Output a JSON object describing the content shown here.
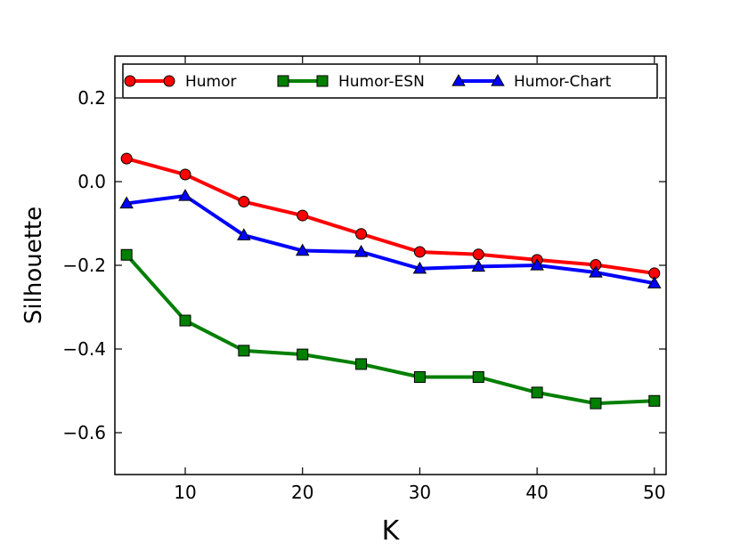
{
  "chart_data": {
    "type": "line",
    "xlabel": "K",
    "ylabel": "Silhouette",
    "xlim": [
      4,
      51
    ],
    "ylim": [
      -0.7,
      0.3
    ],
    "xticks": [
      10,
      20,
      30,
      40,
      50
    ],
    "yticks": [
      0.2,
      0.0,
      -0.2,
      -0.4,
      -0.6
    ],
    "ytick_labels": [
      "0.2",
      "0.0",
      "−0.2",
      "−0.4",
      "−0.6"
    ],
    "grid": false,
    "legend_position": "top",
    "x": [
      5,
      10,
      15,
      20,
      25,
      30,
      35,
      40,
      45,
      50
    ],
    "series": [
      {
        "name": "Humor",
        "color": "#ff0000",
        "marker": "circle",
        "values": [
          0.055,
          0.017,
          -0.048,
          -0.081,
          -0.125,
          -0.168,
          -0.174,
          -0.187,
          -0.199,
          -0.219
        ]
      },
      {
        "name": "Humor-ESN",
        "color": "#007f00",
        "marker": "square",
        "values": [
          -0.175,
          -0.332,
          -0.404,
          -0.413,
          -0.436,
          -0.467,
          -0.467,
          -0.504,
          -0.53,
          -0.524
        ]
      },
      {
        "name": "Humor-Chart",
        "color": "#0000ff",
        "marker": "triangle",
        "values": [
          -0.052,
          -0.034,
          -0.128,
          -0.165,
          -0.168,
          -0.208,
          -0.203,
          -0.2,
          -0.217,
          -0.243
        ]
      }
    ]
  }
}
